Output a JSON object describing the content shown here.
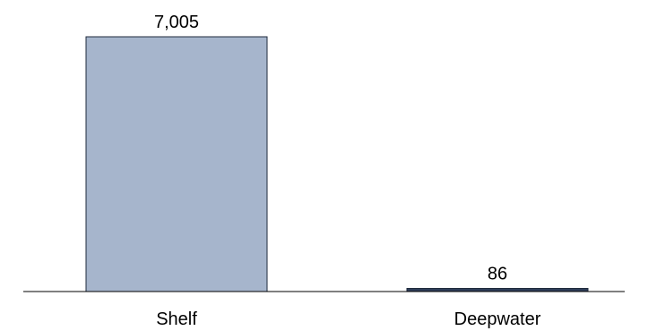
{
  "chart_data": {
    "type": "bar",
    "categories": [
      "Shelf",
      "Deepwater"
    ],
    "values": [
      7005,
      86
    ],
    "data_labels": [
      "7,005",
      "86"
    ],
    "colors": [
      "#a6b5cc",
      "#2f3f5a"
    ],
    "title": "",
    "xlabel": "",
    "ylabel": "",
    "ylim": [
      0,
      7005
    ],
    "grid": false,
    "legend": "none"
  }
}
